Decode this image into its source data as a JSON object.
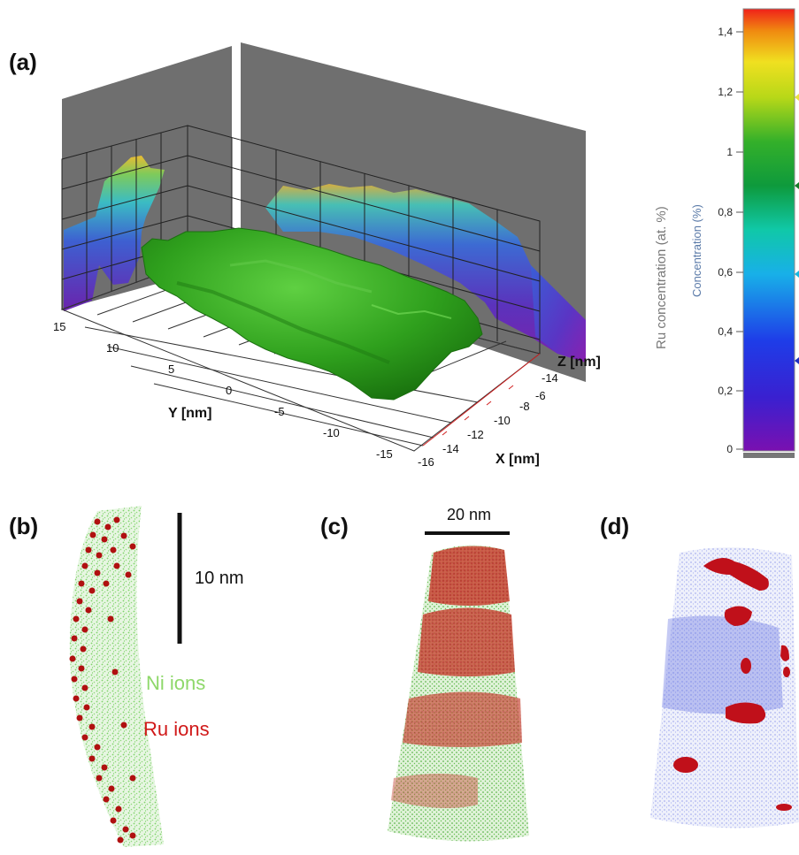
{
  "panels": {
    "a": {
      "label": "(a)",
      "y_axis_label": "Y [nm]",
      "x_axis_label": "X [nm]",
      "z_axis_label": "Z [nm]",
      "y_ticks": [
        "15",
        "10",
        "5",
        "0",
        "-5",
        "-10",
        "-15"
      ],
      "x_ticks": [
        "-16",
        "-14",
        "-12",
        "-10",
        "-8",
        "-6"
      ],
      "z_ticks": [
        "-14"
      ],
      "isosurface_color": "#2e9a1c"
    },
    "b": {
      "label": "(b)",
      "scale_bar_label": "10 nm",
      "legend_ni": "Ni ions",
      "legend_ru": "Ru ions",
      "ni_color": "#7fd36a",
      "ru_color": "#b01010"
    },
    "c": {
      "label": "(c)",
      "scale_bar_label": "20 nm"
    },
    "d": {
      "label": "(d)",
      "point_color": "#3a4de0",
      "isosurface_color": "#c0101a"
    }
  },
  "colorbar": {
    "label_left": "Ru concentration (at. %)",
    "label_right": "Concentration (%)",
    "ticks": [
      "0",
      "0,2",
      "0,4",
      "0,6",
      "0,8",
      "1",
      "1,2",
      "1,4"
    ]
  }
}
